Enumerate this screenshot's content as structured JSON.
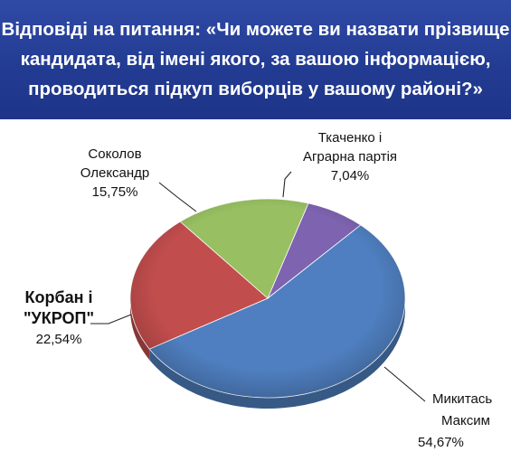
{
  "header": {
    "title_lines": [
      "Відповіді на питання: «Чи можете ви назвати прізвище",
      "кандидата, від імені якого, за вашою інформацією,",
      "проводиться підкуп виборців у вашому районі?»"
    ]
  },
  "chart_data": {
    "type": "pie",
    "title": "Відповіді на питання: «Чи можете ви назвати прізвище кандидата, від імені якого, за вашою інформацією, проводиться підкуп виборців у вашому районі?»",
    "slices": [
      {
        "label_lines": [
          "Ткаченко і",
          "Аграрна партія"
        ],
        "value": 7.04,
        "value_label": "7,04%",
        "color": "#7e63b0"
      },
      {
        "label_lines": [
          "Микитась",
          "Максим"
        ],
        "value": 54.67,
        "value_label": "54,67%",
        "color": "#4f7fc0"
      },
      {
        "label_lines": [
          "Корбан і",
          "\"УКРОП\""
        ],
        "value": 22.54,
        "value_label": "22,54%",
        "color": "#c24d4d"
      },
      {
        "label_lines": [
          "Соколов",
          "Олександр"
        ],
        "value": 15.75,
        "value_label": "15,75%",
        "color": "#98bf62"
      }
    ],
    "legend": "none",
    "style": "3d-pie"
  },
  "colors": {
    "header_bg": "#233c93",
    "header_text": "#ffffff"
  }
}
